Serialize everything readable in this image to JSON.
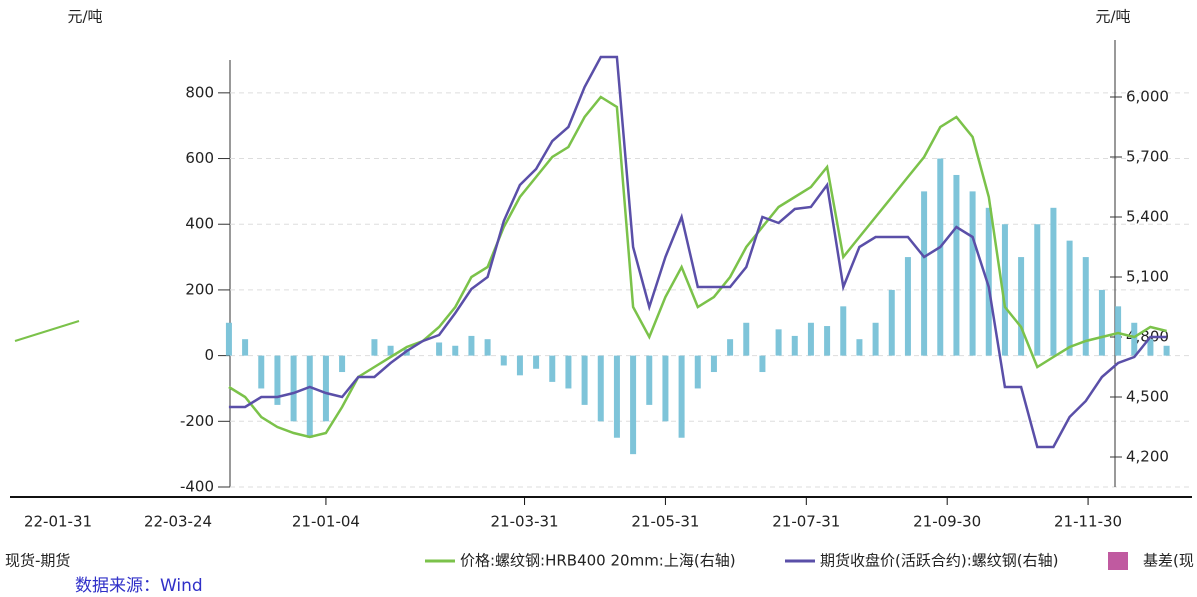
{
  "chart_data": [
    {
      "type": "combo",
      "y_unit": "元/吨",
      "y2_unit": "元/吨",
      "legend_fragment": "现货-期货",
      "source": "数据来源：Wind",
      "xlim": [
        "2020-11-20",
        "2022-01-14"
      ],
      "xticks": [
        {
          "value": "2021-01-04",
          "label": "21-01-04"
        },
        {
          "value": "2021-03-31",
          "label": "21-03-31"
        },
        {
          "value": "2021-05-31",
          "label": "21-05-31"
        },
        {
          "value": "2021-07-31",
          "label": "21-07-31"
        },
        {
          "value": "2021-09-30",
          "label": "21-09-30"
        },
        {
          "value": "2021-11-30",
          "label": "21-11-30"
        }
      ],
      "ylim": [
        -400,
        900
      ],
      "yticks": [
        -400,
        -200,
        0,
        200,
        400,
        600,
        800
      ],
      "y2lim": [
        4050,
        6185
      ],
      "y2ticks": [
        {
          "value": 4200,
          "label": "4,200"
        },
        {
          "value": 4500,
          "label": "4,500"
        },
        {
          "value": 4800,
          "label": "4,800"
        },
        {
          "value": 5100,
          "label": "5,100"
        },
        {
          "value": 5400,
          "label": "5,400"
        },
        {
          "value": 5700,
          "label": "5,700"
        },
        {
          "value": 6000,
          "label": "6,000"
        }
      ],
      "grid": true,
      "x": [
        "2020-11-23",
        "2020-11-30",
        "2020-12-07",
        "2020-12-14",
        "2020-12-21",
        "2020-12-28",
        "2021-01-04",
        "2021-01-11",
        "2021-01-18",
        "2021-01-25",
        "2021-02-01",
        "2021-02-08",
        "2021-02-15",
        "2021-02-22",
        "2021-03-01",
        "2021-03-08",
        "2021-03-15",
        "2021-03-22",
        "2021-03-29",
        "2021-04-05",
        "2021-04-12",
        "2021-04-19",
        "2021-04-26",
        "2021-05-03",
        "2021-05-10",
        "2021-05-17",
        "2021-05-24",
        "2021-05-31",
        "2021-06-07",
        "2021-06-14",
        "2021-06-21",
        "2021-06-28",
        "2021-07-05",
        "2021-07-12",
        "2021-07-19",
        "2021-07-26",
        "2021-08-02",
        "2021-08-09",
        "2021-08-16",
        "2021-08-23",
        "2021-08-30",
        "2021-09-06",
        "2021-09-13",
        "2021-09-20",
        "2021-09-27",
        "2021-10-04",
        "2021-10-11",
        "2021-10-18",
        "2021-10-25",
        "2021-11-01",
        "2021-11-08",
        "2021-11-15",
        "2021-11-22",
        "2021-11-29",
        "2021-12-06",
        "2021-12-13",
        "2021-12-20",
        "2021-12-27",
        "2022-01-03"
      ],
      "series": [
        {
          "name": "价格:螺纹钢:HRB400 20mm:上海(右轴)",
          "color": "#7bc24a",
          "axis": "y2",
          "kind": "line",
          "values": [
            4550,
            4500,
            4400,
            4350,
            4320,
            4300,
            4320,
            4450,
            4600,
            4650,
            4700,
            4750,
            4780,
            4850,
            4950,
            5100,
            5150,
            5350,
            5500,
            5600,
            5700,
            5750,
            5900,
            6000,
            5950,
            4950,
            4800,
            5000,
            5150,
            4950,
            5000,
            5100,
            5250,
            5350,
            5450,
            5500,
            5550,
            5650,
            5200,
            5300,
            5400,
            5500,
            5600,
            5700,
            5850,
            5900,
            5800,
            5500,
            4950,
            4850,
            4650,
            4700,
            4750,
            4780,
            4800,
            4820,
            4800,
            4850,
            4830
          ]
        },
        {
          "name": "期货收盘价(活跃合约):螺纹钢(右轴)",
          "color": "#5a4fa8",
          "axis": "y2",
          "kind": "line",
          "values": [
            4450,
            4450,
            4500,
            4500,
            4520,
            4550,
            4520,
            4500,
            4600,
            4600,
            4670,
            4730,
            4780,
            4810,
            4920,
            5040,
            5100,
            5380,
            5560,
            5640,
            5780,
            5850,
            6050,
            6200,
            6200,
            5250,
            4950,
            5200,
            5400,
            5050,
            5050,
            5050,
            5150,
            5400,
            5370,
            5440,
            5450,
            5560,
            5050,
            5250,
            5300,
            5300,
            5300,
            5200,
            5250,
            5350,
            5300,
            5050,
            4550,
            4550,
            4250,
            4250,
            4400,
            4480,
            4600,
            4670,
            4700,
            4800,
            4800
          ]
        },
        {
          "name": "基差(现",
          "color": "#c05aa0",
          "bar_color": "#7ec4d9",
          "axis": "y",
          "kind": "bar",
          "values": [
            100,
            50,
            -100,
            -150,
            -200,
            -250,
            -200,
            -50,
            0,
            50,
            30,
            20,
            0,
            40,
            30,
            60,
            50,
            -30,
            -60,
            -40,
            -80,
            -100,
            -150,
            -200,
            -250,
            -300,
            -150,
            -200,
            -250,
            -100,
            -50,
            50,
            100,
            -50,
            80,
            60,
            100,
            90,
            150,
            50,
            100,
            200,
            300,
            500,
            600,
            550,
            500,
            450,
            400,
            300,
            400,
            450,
            350,
            300,
            200,
            150,
            100,
            50,
            30
          ]
        }
      ]
    },
    {
      "type": "line",
      "categories": [
        "22-01-31",
        "22-03-24"
      ],
      "series": [
        {
          "color": "#7bc24a",
          "values": [
            4780,
            4880
          ]
        }
      ]
    }
  ]
}
